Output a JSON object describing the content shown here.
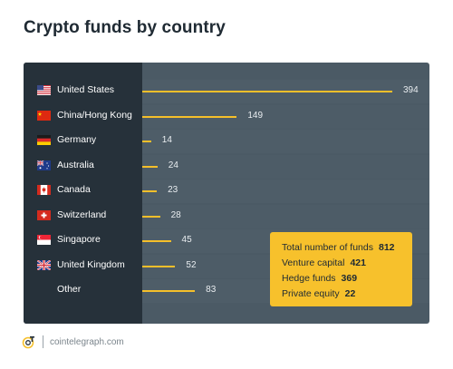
{
  "title": "Crypto funds by country",
  "chart_data": {
    "type": "bar",
    "orientation": "horizontal",
    "categories": [
      "United States",
      "China/Hong Kong",
      "Germany",
      "Australia",
      "Canada",
      "Switzerland",
      "Singapore",
      "United Kingdom",
      "Other"
    ],
    "flags": [
      "us-flag-icon",
      "cn-flag-icon",
      "de-flag-icon",
      "au-flag-icon",
      "ca-flag-icon",
      "ch-flag-icon",
      "sg-flag-icon",
      "gb-flag-icon",
      ""
    ],
    "values": [
      394,
      149,
      14,
      24,
      23,
      28,
      45,
      52,
      83
    ],
    "xlim": [
      0,
      394
    ],
    "bar_color": "#f5bf2a",
    "label_color": "#26313a",
    "panel_color": "#4b5a65"
  },
  "summary": {
    "items": [
      {
        "label": "Total number of funds",
        "value": "812"
      },
      {
        "label": "Venture capital",
        "value": "421"
      },
      {
        "label": "Hedge funds",
        "value": "369"
      },
      {
        "label": "Private equity",
        "value": "22"
      }
    ],
    "color": "#f7c12c"
  },
  "footer": {
    "site": "cointelegraph.com",
    "logo": "cointelegraph-logo-icon"
  }
}
